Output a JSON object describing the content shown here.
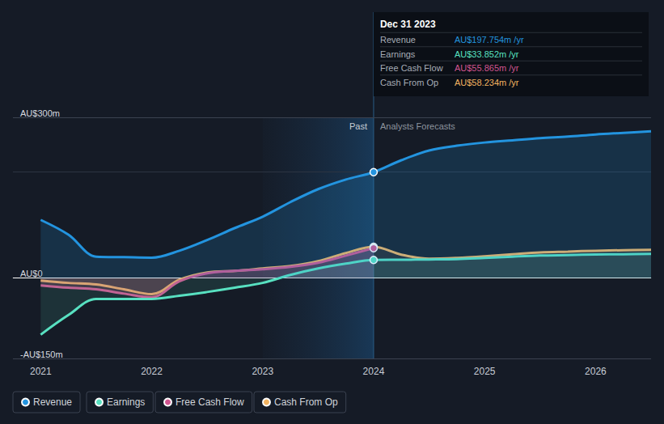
{
  "chart_data": {
    "type": "line",
    "x": [
      2021,
      2021.25,
      2021.5,
      2021.75,
      2022,
      2022.25,
      2022.5,
      2022.75,
      2023,
      2023.25,
      2023.5,
      2023.75,
      2024,
      2024.25,
      2024.5,
      2024.75,
      2025,
      2025.25,
      2025.5,
      2025.75,
      2026,
      2026.25,
      2026.5
    ],
    "xlim": [
      2020.75,
      2026.5
    ],
    "xticks": [
      2021,
      2022,
      2023,
      2024,
      2025,
      2026
    ],
    "ylim": [
      -150,
      300
    ],
    "yticks": [
      {
        "value": -150,
        "label": "-AU$150m"
      },
      {
        "value": 0,
        "label": "AU$0"
      },
      {
        "value": 300,
        "label": "AU$300m"
      }
    ],
    "grid": true,
    "legend": "bottom-left",
    "past_band": [
      2023,
      2024
    ],
    "past_label": "Past",
    "forecast_label": "Analysts Forecasts",
    "highlight": {
      "x": 2024,
      "title": "Dec 31 2023"
    },
    "series": [
      {
        "name": "Revenue",
        "color": "#2394df",
        "highlight_label": "AU$197.754m /yr",
        "values": [
          108.6,
          81,
          40,
          39,
          38,
          51,
          71,
          93.5,
          114.6,
          141.8,
          166,
          184,
          197.754,
          220,
          238,
          247,
          253,
          257,
          261,
          264,
          268,
          271,
          274
        ]
      },
      {
        "name": "Earnings",
        "color": "#58e1c1",
        "highlight_label": "AU$33.852m /yr",
        "values": [
          -105.6,
          -69,
          -39,
          -39,
          -39,
          -33,
          -26,
          -18,
          -9,
          6,
          18,
          27,
          33.852,
          34.2,
          34.7,
          35.5,
          37.7,
          40,
          42,
          43,
          44,
          44.5,
          45
        ]
      },
      {
        "name": "Free Cash Flow",
        "color": "#d0548f",
        "highlight_label": "AU$55.865m /yr",
        "values": [
          -13.6,
          -18,
          -21,
          -29,
          -36,
          -6,
          9,
          13.6,
          16.6,
          21,
          28.7,
          42,
          55.865,
          null,
          null,
          null,
          null,
          null,
          null,
          null,
          null,
          null,
          null
        ]
      },
      {
        "name": "Cash From Op",
        "color": "#f2b361",
        "highlight_label": "AU$58.234m /yr",
        "values": [
          -4.5,
          -9,
          -12,
          -21,
          -30,
          -3,
          10.6,
          13.6,
          18,
          22.6,
          31.7,
          46.8,
          58.234,
          43.7,
          36.2,
          37.7,
          40.7,
          44.5,
          48,
          49.5,
          51,
          52,
          52.8
        ]
      }
    ]
  }
}
